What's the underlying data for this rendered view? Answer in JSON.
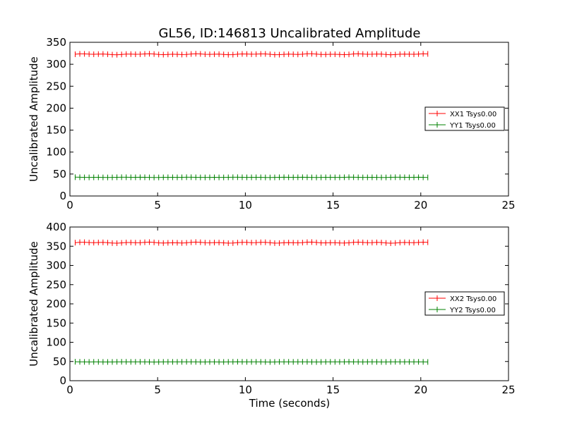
{
  "figure": {
    "title": "GL56, ID:146813 Uncalibrated Amplitude",
    "xlabel": "Time (seconds)"
  },
  "chart_data": [
    {
      "type": "line",
      "title": "GL56, ID:146813 Uncalibrated Amplitude",
      "xlabel": "",
      "ylabel": "Uncalibrated Amplitude",
      "xlim": [
        0,
        25
      ],
      "ylim": [
        0,
        350
      ],
      "xticks": [
        0,
        5,
        10,
        15,
        20,
        25
      ],
      "yticks": [
        0,
        50,
        100,
        150,
        200,
        250,
        300,
        350
      ],
      "grid": false,
      "legend_position": "center-right",
      "x": {
        "start": 0.3,
        "end": 20.4,
        "count": 77
      },
      "series": [
        {
          "name": "XX1 Tsys0.00",
          "color": "#ff0000",
          "mean": 322.8,
          "ripple": 1.2,
          "marker": "+"
        },
        {
          "name": "YY1 Tsys0.00",
          "color": "#008000",
          "mean": 42.5,
          "ripple": 0.3,
          "marker": "+"
        }
      ]
    },
    {
      "type": "line",
      "title": "",
      "xlabel": "Time (seconds)",
      "ylabel": "Uncalibrated Amplitude",
      "xlim": [
        0,
        25
      ],
      "ylim": [
        0,
        400
      ],
      "xticks": [
        0,
        5,
        10,
        15,
        20,
        25
      ],
      "yticks": [
        0,
        50,
        100,
        150,
        200,
        250,
        300,
        350,
        400
      ],
      "grid": false,
      "legend_position": "center-right",
      "x": {
        "start": 0.3,
        "end": 20.4,
        "count": 77
      },
      "series": [
        {
          "name": "XX2 Tsys0.00",
          "color": "#ff0000",
          "mean": 359.3,
          "ripple": 1.5,
          "marker": "+"
        },
        {
          "name": "YY2 Tsys0.00",
          "color": "#008000",
          "mean": 49.0,
          "ripple": 0.3,
          "marker": "+"
        }
      ]
    }
  ]
}
